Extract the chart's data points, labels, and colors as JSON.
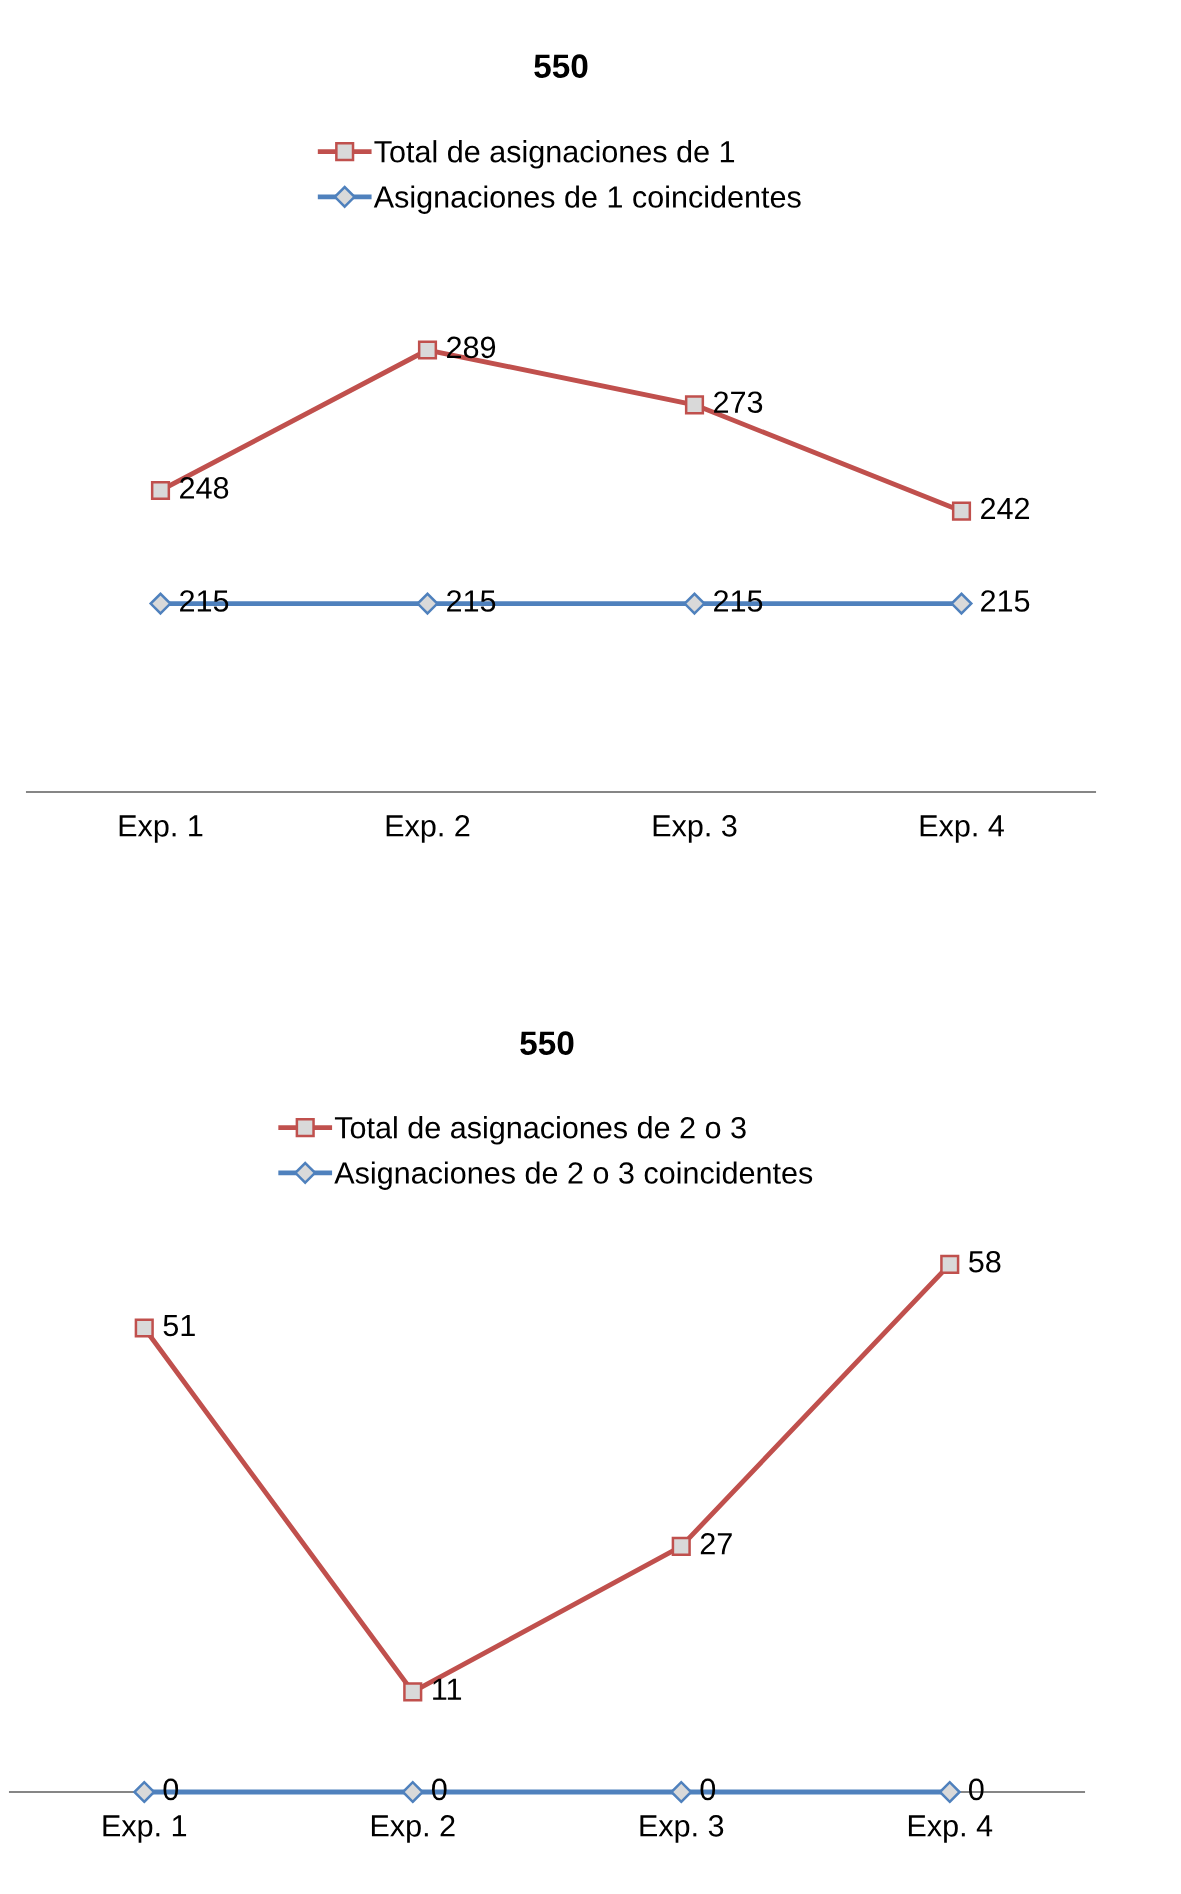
{
  "chart_data": [
    {
      "type": "line",
      "title": "550",
      "categories": [
        "Exp. 1",
        "Exp. 2",
        "Exp. 3",
        "Exp. 4"
      ],
      "tick_labels": "x",
      "grid": false,
      "legend": "top",
      "data_labels": true,
      "series": [
        {
          "name": "Total de asignaciones de 1",
          "color": "#c0504d",
          "marker": "square",
          "values": [
            248,
            289,
            273,
            242
          ]
        },
        {
          "name": "Asignaciones de 1 coincidentes",
          "color": "#4f81bd",
          "marker": "diamond",
          "values": [
            215,
            215,
            215,
            215
          ]
        }
      ]
    },
    {
      "type": "line",
      "title": "550",
      "categories": [
        "Exp. 1",
        "Exp. 2",
        "Exp. 3",
        "Exp. 4"
      ],
      "tick_labels": "x",
      "grid": false,
      "legend": "top",
      "data_labels": true,
      "series": [
        {
          "name": "Total de asignaciones de 2 o 3",
          "color": "#c0504d",
          "marker": "square",
          "values": [
            51,
            11,
            27,
            58
          ]
        },
        {
          "name": "Asignaciones de 2 o 3 coincidentes",
          "color": "#4f81bd",
          "marker": "diamond",
          "values": [
            0,
            0,
            0,
            0
          ]
        }
      ]
    }
  ]
}
